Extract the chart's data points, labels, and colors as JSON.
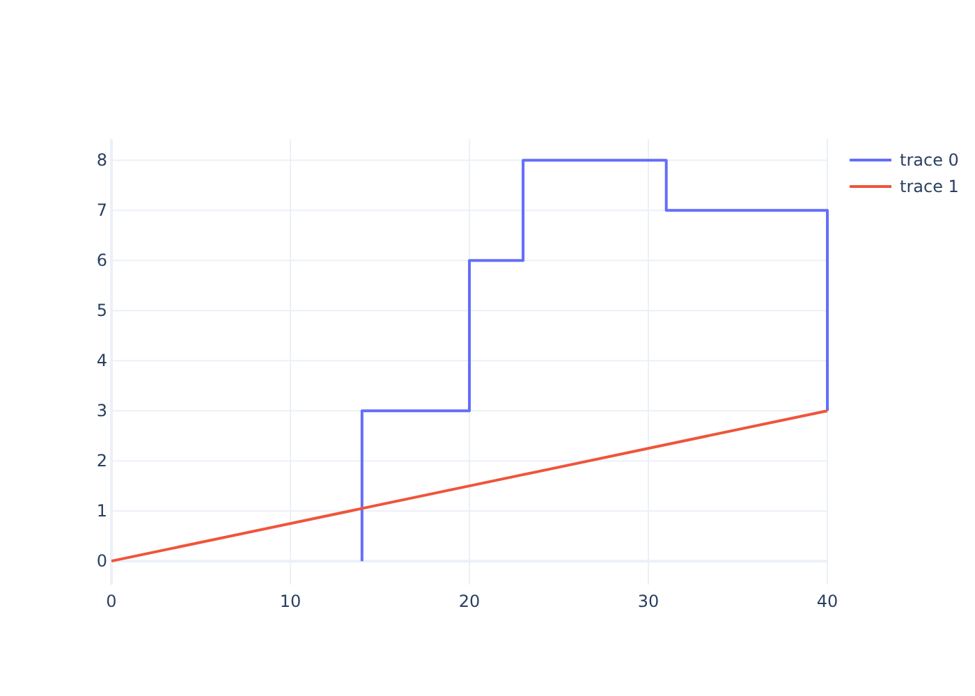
{
  "chart_data": {
    "type": "step",
    "xlim": [
      0,
      40
    ],
    "ylim": [
      -0.47,
      8.42
    ],
    "xticks": [
      0,
      10,
      20,
      30,
      40
    ],
    "yticks": [
      0,
      1,
      2,
      3,
      4,
      5,
      6,
      7,
      8
    ],
    "grid": true,
    "legend": "top right",
    "series": [
      {
        "name": "trace 0",
        "color": "#636efa",
        "x": [
          14,
          20,
          23,
          31,
          40,
          40
        ],
        "values": [
          0,
          3,
          6,
          8,
          7,
          3
        ]
      },
      {
        "name": "trace 1",
        "type": "line",
        "color": "#ef553b",
        "x": [
          0,
          40
        ],
        "values": [
          0,
          3
        ]
      }
    ]
  }
}
